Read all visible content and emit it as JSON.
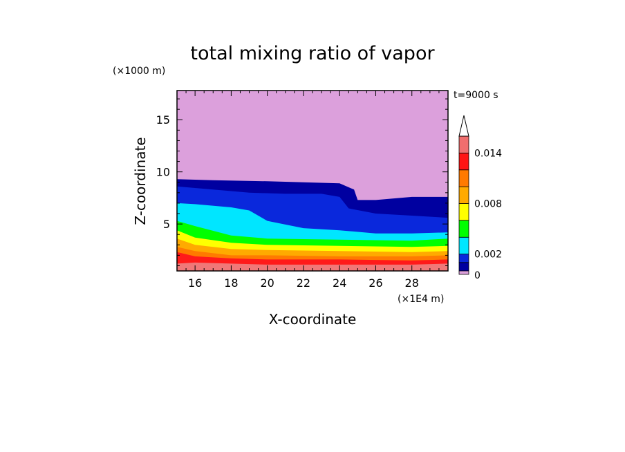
{
  "chart_data": {
    "type": "heatmap",
    "title": "total mixing ratio of vapor",
    "xlabel": "X-coordinate",
    "ylabel": "Z-coordinate",
    "x_unit": "(×1E4 m)",
    "y_unit": "(×1000 m)",
    "time_label": "t=9000 s",
    "xlim": [
      15,
      30
    ],
    "ylim": [
      0.5,
      17.8
    ],
    "x_ticks": [
      16,
      18,
      20,
      22,
      24,
      26,
      28
    ],
    "y_ticks": [
      5,
      10,
      15
    ],
    "colorbar": {
      "levels": [
        0,
        0.001,
        0.002,
        0.004,
        0.006,
        0.008,
        0.01,
        0.012,
        0.014,
        0.016
      ],
      "colors": [
        "#dca0dc",
        "#0000a0",
        "#0a28dc",
        "#00e6ff",
        "#00ff00",
        "#ffff00",
        "#ffaa00",
        "#ff7a00",
        "#ff1414",
        "#f06e6e",
        "#f5b4b4"
      ],
      "tick_labels": [
        {
          "value": 0,
          "label": "0"
        },
        {
          "value": 0.002,
          "label": "0.002"
        },
        {
          "value": 0.008,
          "label": "0.008"
        },
        {
          "value": 0.014,
          "label": "0.014"
        }
      ],
      "extend": "max"
    },
    "bands": [
      {
        "name": "pink-surface",
        "color": "#f07878",
        "top": [
          [
            15,
            1.2
          ],
          [
            16,
            1.3
          ],
          [
            20,
            1.1
          ],
          [
            24,
            1.1
          ],
          [
            28,
            1.1
          ],
          [
            30,
            1.2
          ]
        ]
      },
      {
        "name": "red",
        "color": "#ff1a1a",
        "top": [
          [
            15,
            2.3
          ],
          [
            16,
            1.9
          ],
          [
            18,
            1.7
          ],
          [
            20,
            1.6
          ],
          [
            24,
            1.6
          ],
          [
            28,
            1.5
          ],
          [
            30,
            1.6
          ]
        ]
      },
      {
        "name": "orange-dark",
        "color": "#ff7a00",
        "top": [
          [
            15,
            2.8
          ],
          [
            16,
            2.4
          ],
          [
            18,
            2.0
          ],
          [
            20,
            2.0
          ],
          [
            24,
            1.9
          ],
          [
            28,
            1.9
          ],
          [
            30,
            2.0
          ]
        ]
      },
      {
        "name": "orange",
        "color": "#ffaa00",
        "top": [
          [
            15,
            3.6
          ],
          [
            16,
            3.0
          ],
          [
            18,
            2.6
          ],
          [
            20,
            2.5
          ],
          [
            24,
            2.4
          ],
          [
            28,
            2.3
          ],
          [
            30,
            2.4
          ]
        ]
      },
      {
        "name": "yellow",
        "color": "#ffff00",
        "top": [
          [
            15,
            4.4
          ],
          [
            16,
            3.7
          ],
          [
            18,
            3.2
          ],
          [
            20,
            3.0
          ],
          [
            24,
            2.9
          ],
          [
            28,
            2.8
          ],
          [
            30,
            2.9
          ]
        ]
      },
      {
        "name": "green",
        "color": "#00ff00",
        "top": [
          [
            15,
            5.3
          ],
          [
            16,
            4.8
          ],
          [
            18,
            3.9
          ],
          [
            20,
            3.6
          ],
          [
            24,
            3.5
          ],
          [
            28,
            3.4
          ],
          [
            30,
            3.6
          ]
        ]
      },
      {
        "name": "cyan",
        "color": "#00e6ff",
        "top": [
          [
            15,
            7.0
          ],
          [
            16,
            6.9
          ],
          [
            18,
            6.6
          ],
          [
            19,
            6.3
          ],
          [
            20,
            5.3
          ],
          [
            22,
            4.6
          ],
          [
            24,
            4.4
          ],
          [
            26,
            4.1
          ],
          [
            28,
            4.1
          ],
          [
            30,
            4.2
          ]
        ]
      },
      {
        "name": "blue",
        "color": "#0a28dc",
        "top": [
          [
            15,
            8.6
          ],
          [
            17,
            8.3
          ],
          [
            19,
            8.0
          ],
          [
            21,
            7.9
          ],
          [
            23,
            7.9
          ],
          [
            24,
            7.6
          ],
          [
            24.5,
            6.5
          ],
          [
            26,
            6.0
          ],
          [
            28,
            5.8
          ],
          [
            30,
            5.6
          ]
        ]
      },
      {
        "name": "navy",
        "color": "#0000a0",
        "top": [
          [
            15,
            9.3
          ],
          [
            17,
            9.2
          ],
          [
            20,
            9.1
          ],
          [
            22,
            9.0
          ],
          [
            24,
            8.9
          ],
          [
            24.8,
            8.3
          ],
          [
            25,
            7.3
          ],
          [
            26,
            7.3
          ],
          [
            28,
            7.6
          ],
          [
            30,
            7.6
          ]
        ]
      }
    ]
  }
}
